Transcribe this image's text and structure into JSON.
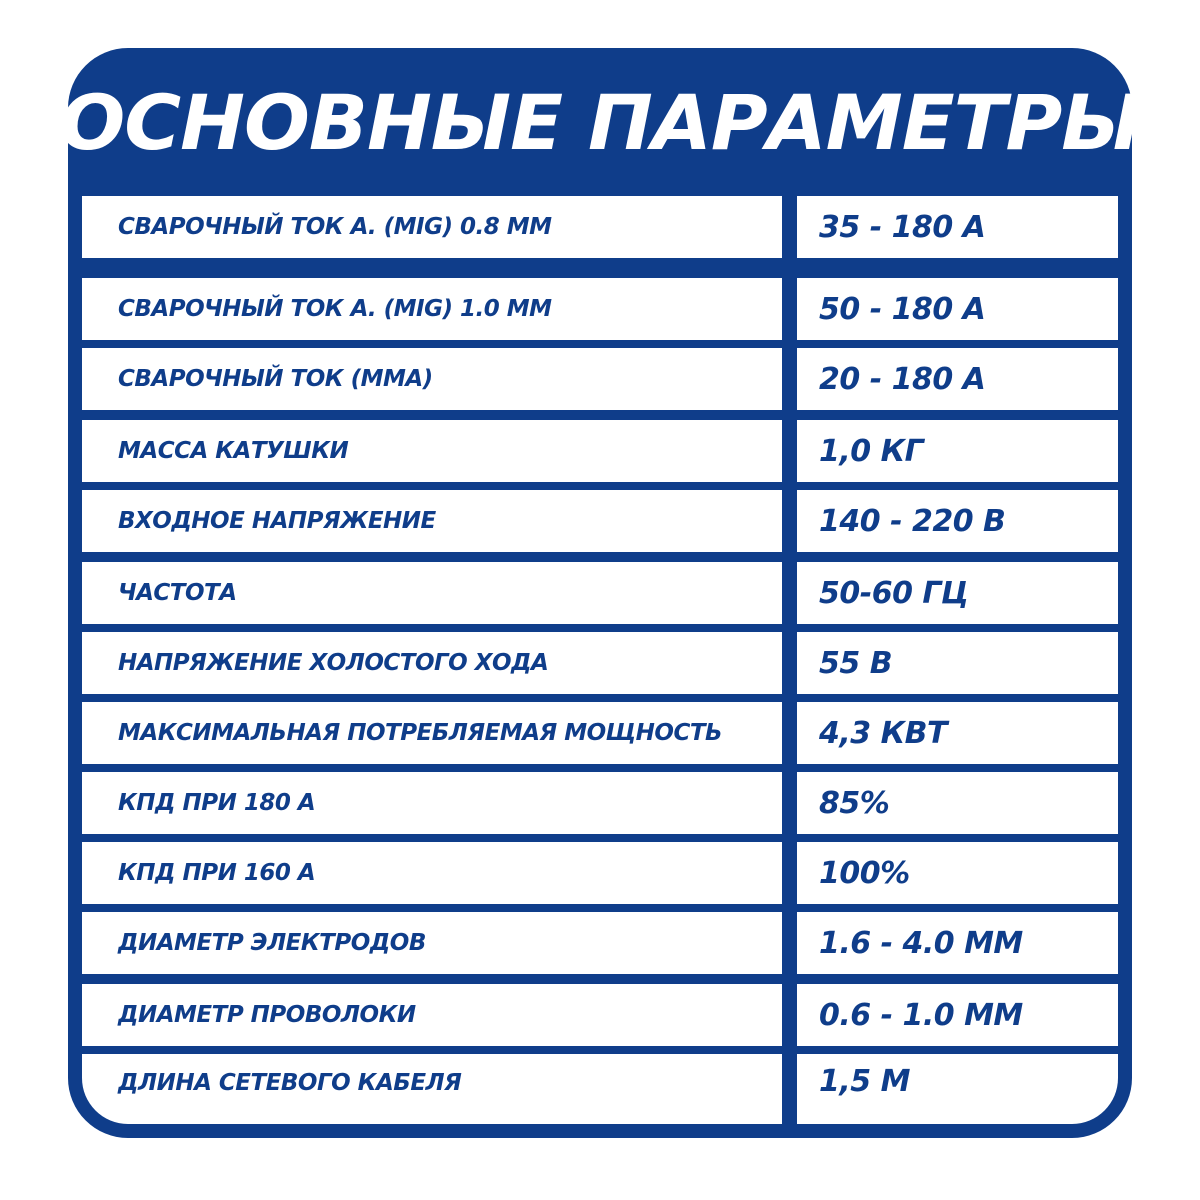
{
  "title": "ОСНОВНЫЕ ПАРАМЕТРЫ",
  "colors": {
    "brand_blue": "#0f3d8a",
    "cell_bg": "#ffffff"
  },
  "rows": [
    {
      "label": "СВАРОЧНЫЙ ТОК А. (MIG) 0.8 ММ",
      "value": "35 - 180 А"
    },
    {
      "label": "СВАРОЧНЫЙ ТОК А. (MIG) 1.0 ММ",
      "value": "50 - 180 А"
    },
    {
      "label": "СВАРОЧНЫЙ ТОК (ММА)",
      "value": "20 - 180 А"
    },
    {
      "label": "МАССА КАТУШКИ",
      "value": "1,0 КГ"
    },
    {
      "label": "ВХОДНОЕ НАПРЯЖЕНИЕ",
      "value": "140 - 220 В"
    },
    {
      "label": "ЧАСТОТА",
      "value": "50-60 ГЦ"
    },
    {
      "label": "НАПРЯЖЕНИЕ ХОЛОСТОГО ХОДА",
      "value": "55 В"
    },
    {
      "label": "МАКСИМАЛЬНАЯ ПОТРЕБЛЯЕМАЯ МОЩНОСТЬ",
      "value": "4,3 КВТ"
    },
    {
      "label": "КПД ПРИ 180 А",
      "value": "85%"
    },
    {
      "label": "КПД ПРИ 160 А",
      "value": "100%"
    },
    {
      "label": "ДИАМЕТР ЭЛЕКТРОДОВ",
      "value": "1.6 - 4.0 ММ"
    },
    {
      "label": "ДИАМЕТР ПРОВОЛОКИ",
      "value": "0.6 - 1.0 ММ"
    },
    {
      "label": "ДЛИНА СЕТЕВОГО КАБЕЛЯ",
      "value": "1,5 М"
    }
  ]
}
